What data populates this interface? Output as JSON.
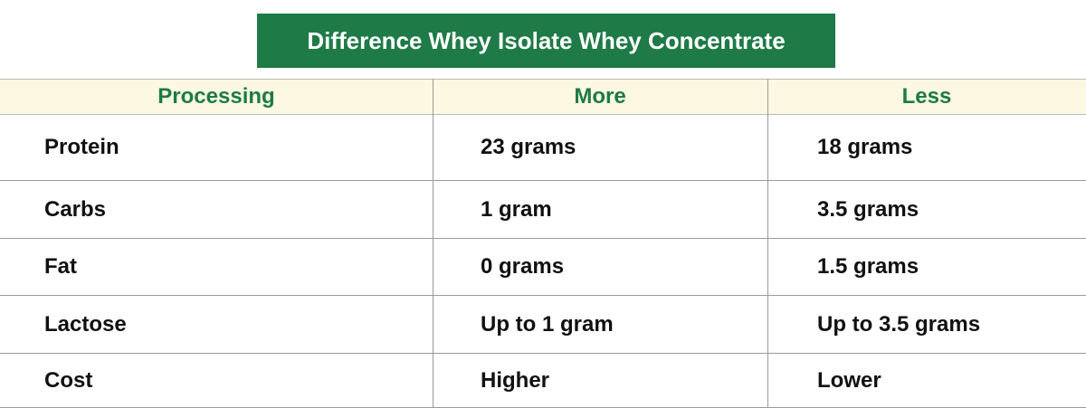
{
  "header": {
    "title": [
      "Difference",
      "Whey Isolate",
      "Whey Concentrate"
    ]
  },
  "table": {
    "columns": [
      "Processing",
      "More",
      "Less"
    ],
    "rows": [
      [
        "Protein",
        "23 grams",
        "18 grams"
      ],
      [
        "Carbs",
        "1 gram",
        "3.5 grams"
      ],
      [
        "Fat",
        "0 grams",
        "1.5 grams"
      ],
      [
        "Lactose",
        "Up to 1 gram",
        "Up to 3.5 grams"
      ],
      [
        "Cost",
        "Higher",
        "Lower"
      ]
    ]
  }
}
